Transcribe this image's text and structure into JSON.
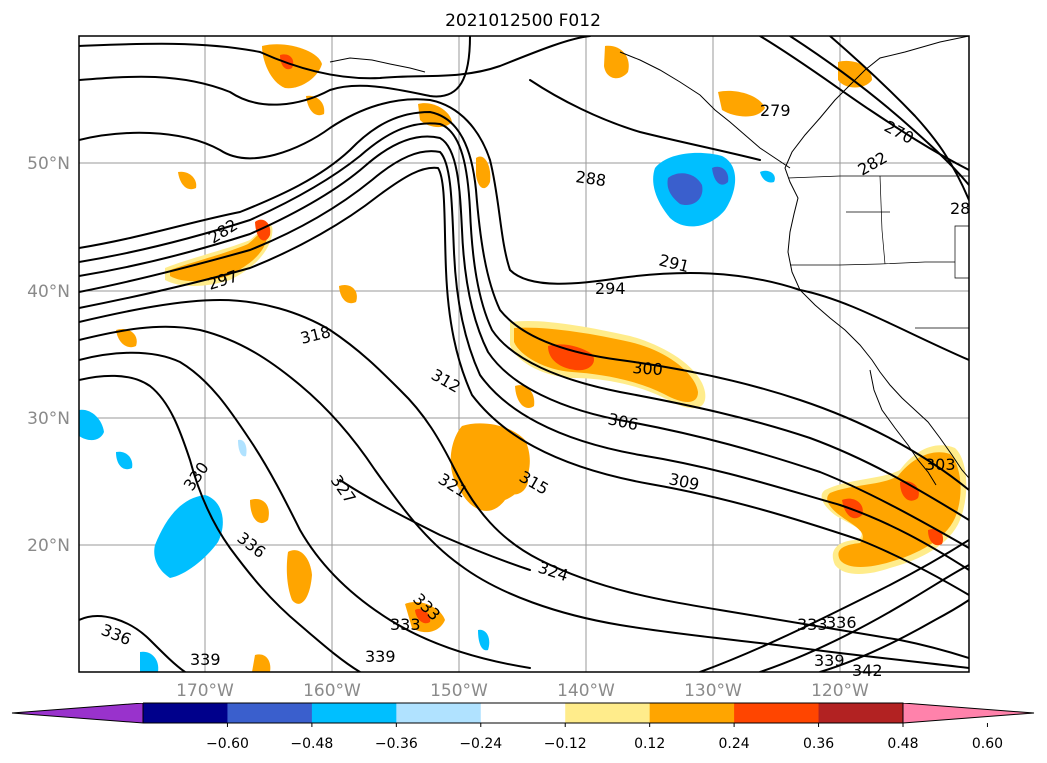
{
  "title": "2021012500 F012",
  "lat_labels": [
    "50°N",
    "40°N",
    "30°N",
    "20°N"
  ],
  "lon_labels": [
    "170°W",
    "160°W",
    "150°W",
    "140°W",
    "130°W",
    "120°W"
  ],
  "colorbar": {
    "ticks": [
      "−0.60",
      "−0.48",
      "−0.36",
      "−0.24",
      "−0.12",
      "0.12",
      "0.24",
      "0.36",
      "0.48",
      "0.60"
    ],
    "colors": [
      "#9932cc",
      "#00008b",
      "#3a5fcd",
      "#00bfff",
      "#b0e2ff",
      "#ffffff",
      "#ffec8b",
      "#ffa500",
      "#ff4500",
      "#b22222",
      "#ff82ab"
    ]
  },
  "contour_labels": [
    "279",
    "270",
    "282",
    "28",
    "288",
    "282",
    "291",
    "294",
    "297",
    "318",
    "300",
    "312",
    "306",
    "315",
    "321",
    "309",
    "303",
    "330",
    "327",
    "336",
    "324",
    "333",
    "333",
    "336",
    "339",
    "339",
    "333",
    "336",
    "339",
    "342"
  ],
  "shading_colors": {
    "pale_yellow": "#ffec8b",
    "orange": "#ffa500",
    "red_orange": "#ff4500",
    "deep_sky_blue": "#00bfff",
    "royal_blue": "#3a5fcd",
    "light_blue": "#b0e2ff"
  }
}
